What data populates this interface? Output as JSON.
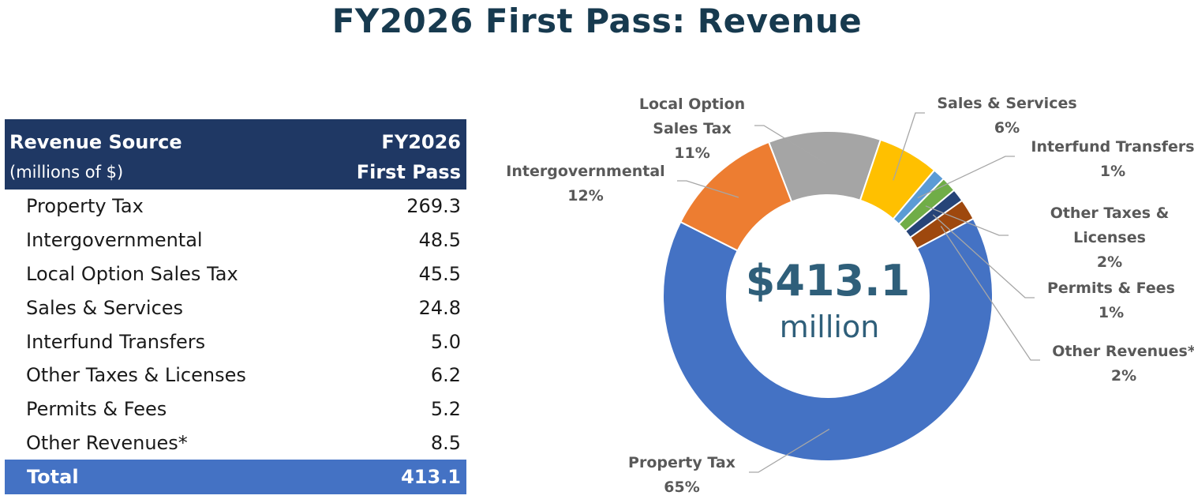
{
  "title": "FY2026 First Pass: Revenue",
  "table": {
    "header_source": "Revenue Source",
    "header_units": "(millions of $)",
    "header_year": "FY2026",
    "header_pass": "First Pass",
    "rows": [
      {
        "source": "Property Tax",
        "value": "269.3"
      },
      {
        "source": "Intergovernmental",
        "value": "48.5"
      },
      {
        "source": "Local Option Sales Tax",
        "value": "45.5"
      },
      {
        "source": "Sales & Services",
        "value": "24.8"
      },
      {
        "source": "Interfund Transfers",
        "value": "5.0"
      },
      {
        "source": "Other Taxes & Licenses",
        "value": "6.2"
      },
      {
        "source": "Permits & Fees",
        "value": "5.2"
      },
      {
        "source": "Other Revenues*",
        "value": "8.5"
      }
    ],
    "total_label": "Total",
    "total_value": "413.1"
  },
  "chart_data": {
    "type": "pie",
    "center_amount": "$413.1",
    "center_unit": "million",
    "slices": [
      {
        "label_lines": [
          "Local Option",
          "Sales Tax"
        ],
        "pct": "11%",
        "value": 45.5,
        "color": "#a5a5a5"
      },
      {
        "label_lines": [
          "Sales & Services"
        ],
        "pct": "6%",
        "value": 24.8,
        "color": "#ffc000"
      },
      {
        "label_lines": [
          "Interfund Transfers"
        ],
        "pct": "1%",
        "value": 5.0,
        "color": "#5b9bd5"
      },
      {
        "label_lines": [
          "Other Taxes &",
          "Licenses"
        ],
        "pct": "2%",
        "value": 6.2,
        "color": "#70ad47"
      },
      {
        "label_lines": [
          "Permits & Fees"
        ],
        "pct": "1%",
        "value": 5.2,
        "color": "#264478"
      },
      {
        "label_lines": [
          "Other Revenues*"
        ],
        "pct": "2%",
        "value": 8.5,
        "color": "#9e480e"
      },
      {
        "label_lines": [
          "Property Tax"
        ],
        "pct": "65%",
        "value": 269.3,
        "color": "#4472c4"
      },
      {
        "label_lines": [
          "Intergovernmental"
        ],
        "pct": "12%",
        "value": 48.5,
        "color": "#ed7d31"
      }
    ]
  }
}
